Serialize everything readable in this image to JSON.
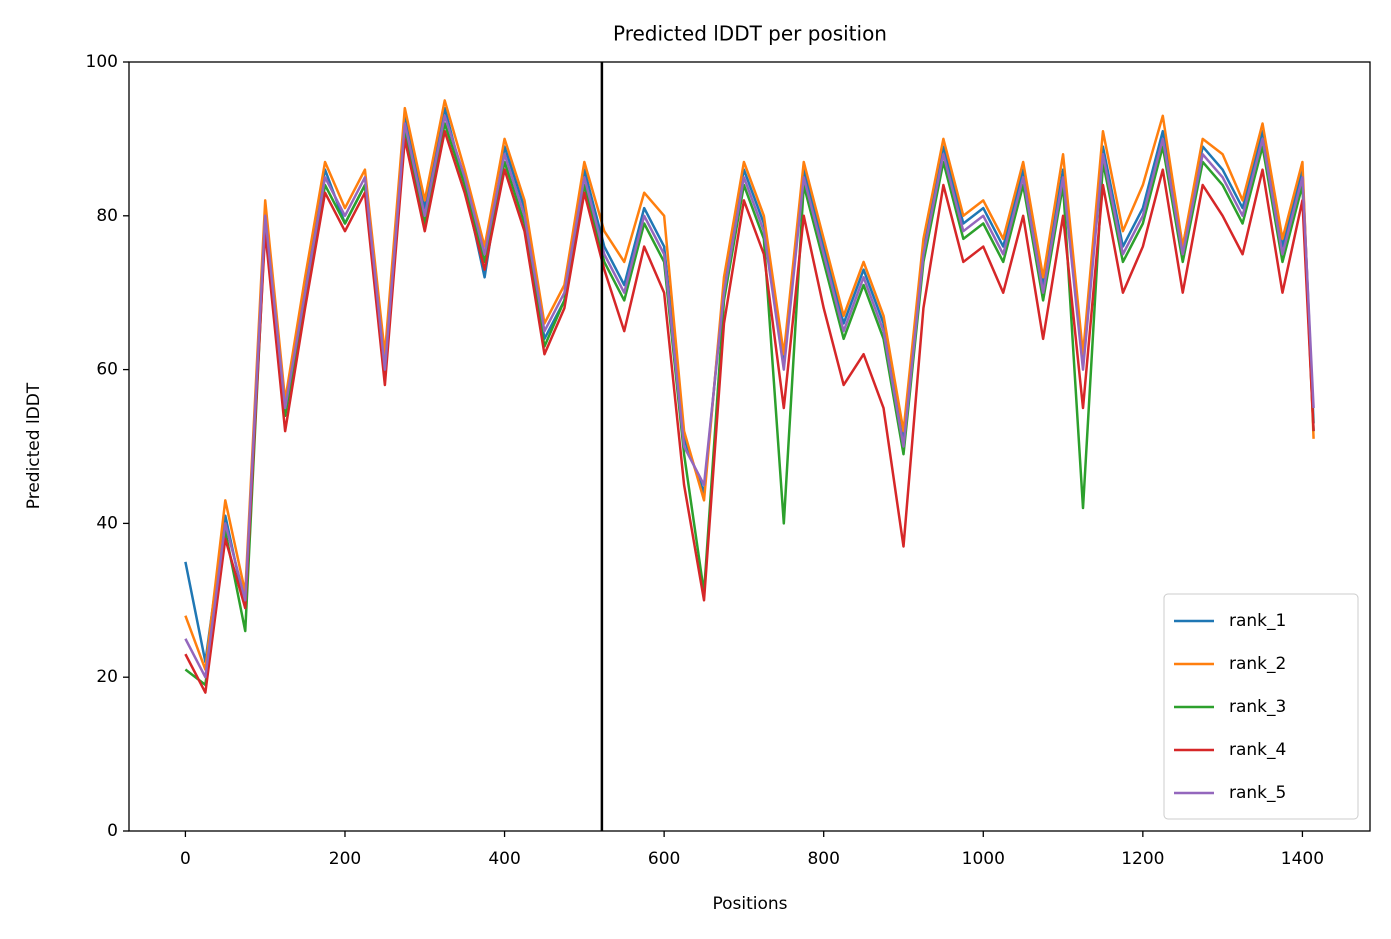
{
  "chart_data": {
    "type": "line",
    "title": "Predicted lDDT per position",
    "xlabel": "Positions",
    "ylabel": "Predicted lDDT",
    "x": [
      0,
      25,
      50,
      75,
      100,
      125,
      150,
      175,
      200,
      225,
      250,
      275,
      300,
      325,
      350,
      375,
      400,
      425,
      450,
      475,
      500,
      525,
      550,
      575,
      600,
      625,
      650,
      675,
      700,
      725,
      750,
      775,
      800,
      825,
      850,
      875,
      900,
      925,
      950,
      975,
      1000,
      1025,
      1050,
      1075,
      1100,
      1125,
      1150,
      1175,
      1200,
      1225,
      1250,
      1275,
      1300,
      1325,
      1350,
      1375,
      1400,
      1414
    ],
    "series": [
      {
        "name": "rank_1",
        "color": "#1f77b4",
        "values": [
          35,
          22,
          41,
          29,
          81,
          54,
          71,
          86,
          79,
          84,
          61,
          93,
          81,
          94,
          84,
          72,
          89,
          81,
          64,
          69,
          86,
          76,
          71,
          81,
          76,
          51,
          44,
          71,
          86,
          79,
          61,
          86,
          76,
          66,
          73,
          66,
          51,
          76,
          89,
          79,
          81,
          76,
          86,
          71,
          86,
          61,
          89,
          76,
          81,
          91,
          76,
          89,
          86,
          81,
          91,
          76,
          86,
          53
        ]
      },
      {
        "name": "rank_2",
        "color": "#ff7f0e",
        "values": [
          28,
          21,
          43,
          31,
          82,
          56,
          72,
          87,
          81,
          86,
          62,
          94,
          82,
          95,
          86,
          76,
          90,
          82,
          66,
          71,
          87,
          78,
          74,
          83,
          80,
          52,
          43,
          72,
          87,
          80,
          62,
          87,
          77,
          67,
          74,
          67,
          52,
          77,
          90,
          80,
          82,
          77,
          87,
          72,
          88,
          62,
          91,
          78,
          84,
          93,
          76,
          90,
          88,
          82,
          92,
          77,
          87,
          51
        ]
      },
      {
        "name": "rank_3",
        "color": "#2ca02c",
        "values": [
          21,
          19,
          39,
          26,
          79,
          54,
          69,
          84,
          79,
          84,
          59,
          91,
          79,
          92,
          84,
          74,
          87,
          79,
          63,
          69,
          84,
          74,
          69,
          79,
          74,
          49,
          31,
          69,
          84,
          77,
          40,
          84,
          74,
          64,
          71,
          64,
          49,
          74,
          87,
          77,
          79,
          74,
          84,
          69,
          84,
          42,
          87,
          74,
          79,
          89,
          74,
          87,
          84,
          79,
          89,
          74,
          84,
          52
        ]
      },
      {
        "name": "rank_4",
        "color": "#d62728",
        "values": [
          23,
          18,
          38,
          29,
          78,
          52,
          68,
          83,
          78,
          83,
          58,
          90,
          78,
          91,
          83,
          73,
          86,
          78,
          62,
          68,
          83,
          73,
          65,
          76,
          70,
          45,
          30,
          66,
          82,
          75,
          55,
          80,
          68,
          58,
          62,
          55,
          37,
          68,
          84,
          74,
          76,
          70,
          80,
          64,
          80,
          55,
          84,
          70,
          76,
          86,
          70,
          84,
          80,
          75,
          86,
          70,
          82,
          52
        ]
      },
      {
        "name": "rank_5",
        "color": "#9467bd",
        "values": [
          25,
          20,
          40,
          30,
          80,
          55,
          70,
          85,
          80,
          85,
          60,
          92,
          80,
          93,
          85,
          75,
          88,
          80,
          65,
          70,
          85,
          75,
          70,
          80,
          75,
          50,
          45,
          70,
          85,
          78,
          60,
          85,
          75,
          65,
          72,
          65,
          50,
          75,
          88,
          78,
          80,
          75,
          85,
          70,
          85,
          60,
          88,
          75,
          80,
          90,
          75,
          88,
          85,
          80,
          90,
          75,
          85,
          55
        ]
      }
    ],
    "vlines": [
      522
    ],
    "xlim": [
      -70.7,
      1484.7
    ],
    "ylim": [
      0,
      100
    ],
    "xticks": [
      0,
      200,
      400,
      600,
      800,
      1000,
      1200,
      1400
    ],
    "yticks": [
      0,
      20,
      40,
      60,
      80,
      100
    ],
    "legend": "lower right"
  }
}
